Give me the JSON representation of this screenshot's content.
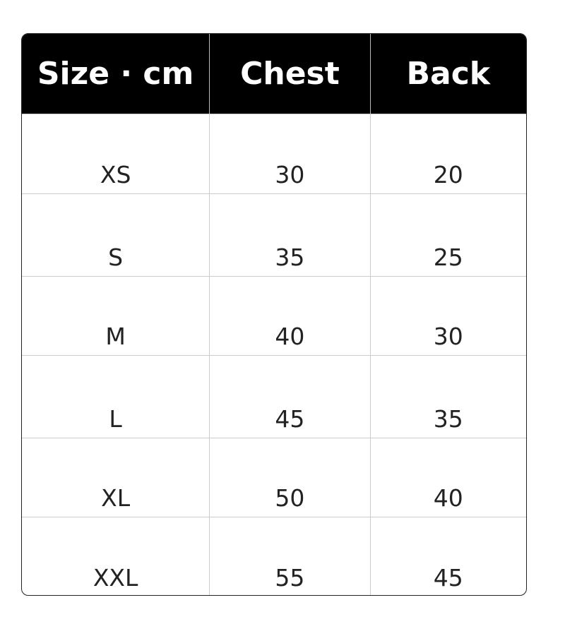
{
  "table": {
    "headers": [
      "Size · cm",
      "Chest",
      "Back"
    ],
    "rows": [
      [
        "XS",
        "30",
        "20"
      ],
      [
        "S",
        "35",
        "25"
      ],
      [
        "M",
        "40",
        "30"
      ],
      [
        "L",
        "45",
        "35"
      ],
      [
        "XL",
        "50",
        "40"
      ],
      [
        "XXL",
        "55",
        "45"
      ]
    ]
  }
}
